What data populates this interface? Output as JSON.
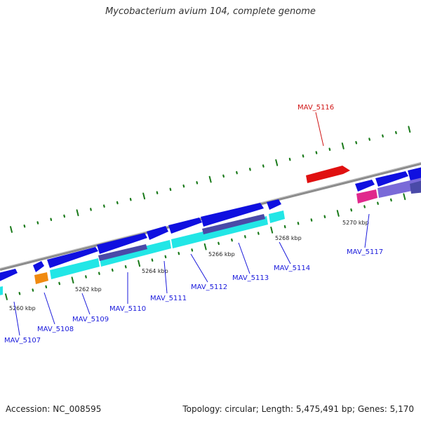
{
  "title": "Mycobacterium avium 104, complete genome",
  "footer": {
    "accession": "Accession: NC_008595",
    "summary": "Topology: circular; Length: 5,475,491 bp; Genes: 5,170"
  },
  "colors": {
    "backbone": "#8c8c8c",
    "gene_blue": "#1010e0",
    "gene_red": "#e01010",
    "cds_cyan": "#22e6e6",
    "cds_orange": "#f08a10",
    "cds_magenta": "#e0288c",
    "feature_slate": "#4a4aa8",
    "feature_lavender": "#7a6ad8",
    "tick": "#1a7a1a",
    "label_blue": "#1a1adb",
    "label_red": "#d01515"
  },
  "kbp_ticks": [
    "5260 kbp",
    "5262 kbp",
    "5264 kbp",
    "5266 kbp",
    "5268 kbp",
    "5270 kbp"
  ],
  "genes": [
    {
      "id": "MAV_5107",
      "label": "MAV_5107",
      "strand": "+"
    },
    {
      "id": "MAV_5108",
      "label": "MAV_5108",
      "strand": "-"
    },
    {
      "id": "MAV_5109",
      "label": "MAV_5109",
      "strand": "+"
    },
    {
      "id": "MAV_5110",
      "label": "MAV_5110",
      "strand": "+"
    },
    {
      "id": "MAV_5111",
      "label": "MAV_5111",
      "strand": "+"
    },
    {
      "id": "MAV_5112",
      "label": "MAV_5112",
      "strand": "+"
    },
    {
      "id": "MAV_5113",
      "label": "MAV_5113",
      "strand": "+"
    },
    {
      "id": "MAV_5114",
      "label": "MAV_5114",
      "strand": "+"
    },
    {
      "id": "MAV_5116",
      "label": "MAV_5116",
      "strand": "+"
    },
    {
      "id": "MAV_5117",
      "label": "MAV_5117",
      "strand": "+"
    }
  ]
}
